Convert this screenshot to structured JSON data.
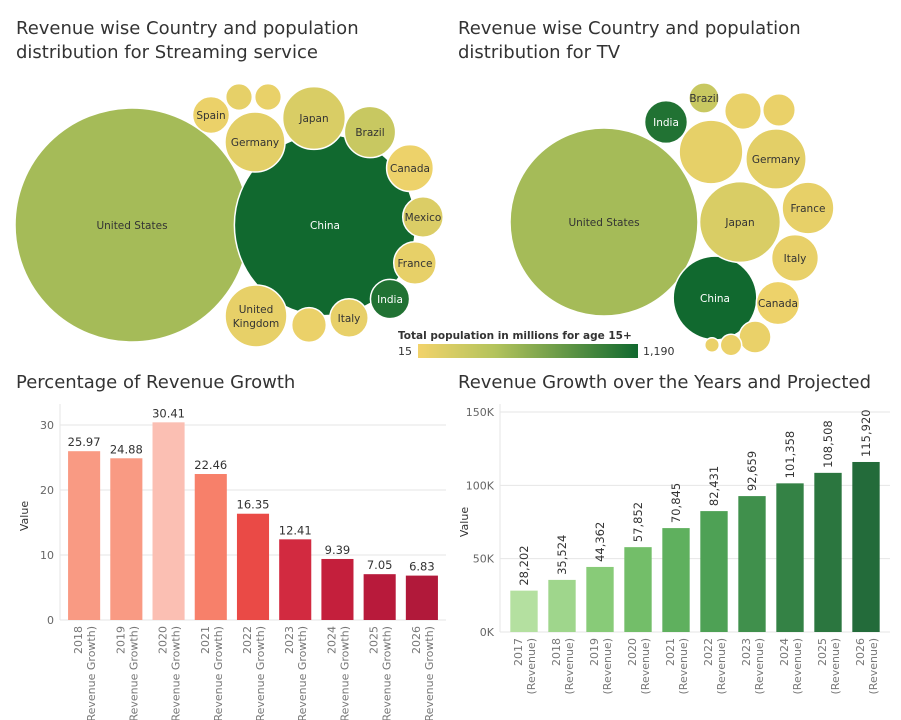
{
  "chart_data": [
    {
      "type": "bubble",
      "title": "Revenue wise Country and population distribution for Streaming service",
      "bubbles": [
        {
          "label": "United States",
          "size": 100,
          "color_value": 330
        },
        {
          "label": "China",
          "size": 60,
          "color_value": 1190
        },
        {
          "label": "Spain",
          "size": 2.5,
          "color_value": 40
        },
        {
          "label": "",
          "size": 1.3,
          "color_value": 60
        },
        {
          "label": "",
          "size": 1.3,
          "color_value": 50
        },
        {
          "label": "Germany",
          "size": 6.6,
          "color_value": 70
        },
        {
          "label": "Japan",
          "size": 7.2,
          "color_value": 110
        },
        {
          "label": "Brazil",
          "size": 4.8,
          "color_value": 170
        },
        {
          "label": "Canada",
          "size": 4.0,
          "color_value": 32
        },
        {
          "label": "Mexico",
          "size": 3.0,
          "color_value": 100
        },
        {
          "label": "France",
          "size": 3.3,
          "color_value": 55
        },
        {
          "label": "India",
          "size": 2.8,
          "color_value": 1100
        },
        {
          "label": "Italy",
          "size": 2.7,
          "color_value": 52
        },
        {
          "label": "",
          "size": 2.2,
          "color_value": 40
        },
        {
          "label": "United Kingdom",
          "size": 7.0,
          "color_value": 55
        }
      ]
    },
    {
      "type": "bubble",
      "title": "Revenue wise Country and population distribution for TV",
      "bubbles": [
        {
          "label": "United States",
          "size": 100,
          "color_value": 330
        },
        {
          "label": "China",
          "size": 19.8,
          "color_value": 1190
        },
        {
          "label": "India",
          "size": 5.2,
          "color_value": 1100
        },
        {
          "label": "Brazil",
          "size": 2.6,
          "color_value": 170
        },
        {
          "label": "",
          "size": 3.8,
          "color_value": 50
        },
        {
          "label": "",
          "size": 3.0,
          "color_value": 45
        },
        {
          "label": "",
          "size": 11.5,
          "color_value": 60
        },
        {
          "label": "Germany",
          "size": 10.3,
          "color_value": 70
        },
        {
          "label": "Japan",
          "size": 18.5,
          "color_value": 110
        },
        {
          "label": "France",
          "size": 7.6,
          "color_value": 55
        },
        {
          "label": "Italy",
          "size": 6.2,
          "color_value": 52
        },
        {
          "label": "Canada",
          "size": 5.3,
          "color_value": 32
        },
        {
          "label": "",
          "size": 2.9,
          "color_value": 45
        },
        {
          "label": "",
          "size": 1.3,
          "color_value": 40
        },
        {
          "label": "",
          "size": 0.6,
          "color_value": 40
        }
      ]
    },
    {
      "type": "bar",
      "title": "Percentage of Revenue Growth",
      "xlabel": "",
      "ylabel": "Value",
      "ylim": [
        0,
        32
      ],
      "yticks": [
        0,
        10,
        20,
        30
      ],
      "grid": true,
      "categories": [
        "2018 (Revenue Growth)",
        "2019 (Revenue Growth)",
        "2020 (Revenue Growth)",
        "2021 (Revenue Growth)",
        "2022 (Revenue Growth)",
        "2023 (Revenue Growth)",
        "2024 (Revenue Growth)",
        "2025 (Revenue Growth)",
        "2026 (Revenue Growth)"
      ],
      "values": [
        25.97,
        24.88,
        30.41,
        22.46,
        16.35,
        12.41,
        9.39,
        7.05,
        6.83
      ],
      "labels": [
        "25.97",
        "24.88",
        "30.41",
        "22.46",
        "16.35",
        "12.41",
        "9.39",
        "7.05",
        "6.83"
      ],
      "colors": [
        "#f99a83",
        "#f99a83",
        "#fbbfb3",
        "#f7806a",
        "#ea4a46",
        "#d22a40",
        "#c41f3c",
        "#b81a3b",
        "#b1193a"
      ]
    },
    {
      "type": "bar",
      "title": "Revenue Growth over the Years and Projected",
      "xlabel": "",
      "ylabel": "Value",
      "ylim": [
        0,
        150000
      ],
      "yticks": [
        0,
        50000,
        100000,
        150000
      ],
      "ytick_labels": [
        "0K",
        "50K",
        "100K",
        "150K"
      ],
      "grid": true,
      "categories": [
        "2017 (Revenue)",
        "2018 (Revenue)",
        "2019 (Revenue)",
        "2020 (Revenue)",
        "2021 (Revenue)",
        "2022 (Revenue)",
        "2023 (Revenue)",
        "2024 (Revenue)",
        "2025 (Revenue)",
        "2026 (Revenue)"
      ],
      "values": [
        28202,
        35524,
        44362,
        57852,
        70845,
        82431,
        92659,
        101358,
        108508,
        115920
      ],
      "labels": [
        "28,202",
        "35,524",
        "44,362",
        "57,852",
        "70,845",
        "82,431",
        "92,659",
        "101,358",
        "108,508",
        "115,920"
      ],
      "colors": [
        "#b4e0a0",
        "#9fd68c",
        "#88cb78",
        "#73be69",
        "#5fb05e",
        "#4ea155",
        "#40904c",
        "#348245",
        "#2b763f",
        "#236b3a"
      ]
    }
  ],
  "legend": {
    "title": "Total population in millions for age 15+",
    "min_label": "15",
    "max_label": "1,190",
    "min_color": "#f2d36b",
    "mid_color": "#b3c35c",
    "max_color": "#11692f"
  }
}
